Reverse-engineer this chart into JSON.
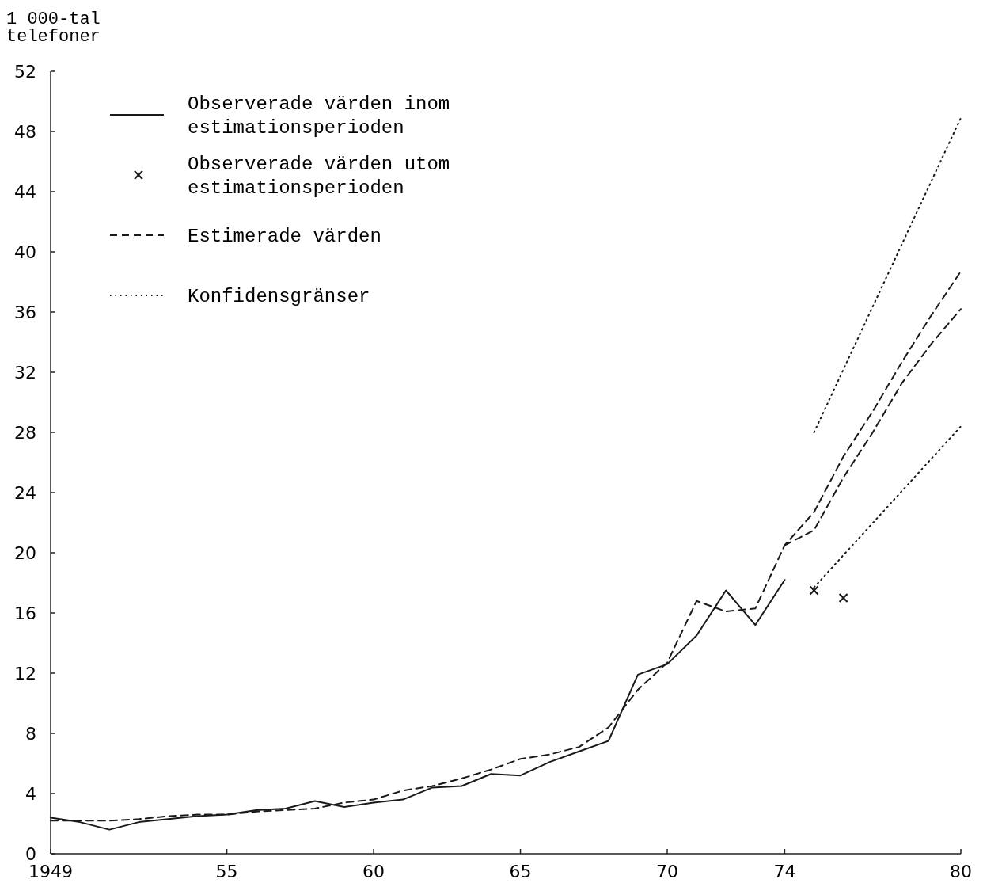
{
  "chart_data": {
    "type": "line",
    "ylabel": "1 000-tal telefoner",
    "xlim": [
      1949,
      1980
    ],
    "xticks": [
      1949,
      {
        "value": 1955,
        "label": "55"
      },
      {
        "value": 1960,
        "label": "60"
      },
      {
        "value": 1965,
        "label": "65"
      },
      {
        "value": 1970,
        "label": "70"
      },
      {
        "value": 1974,
        "label": "74"
      },
      {
        "value": 1980,
        "label": "80"
      }
    ],
    "ylim": [
      0,
      52
    ],
    "yticks": [
      0,
      4,
      8,
      12,
      16,
      20,
      24,
      28,
      32,
      36,
      40,
      44,
      48,
      52
    ],
    "grid": false,
    "legend": "top left",
    "series": [
      {
        "name": "Observerade värden inom estimationsperioden",
        "line_style": "solid",
        "color": "#1a1a1a",
        "x": [
          1949,
          1950,
          1951,
          1952,
          1953,
          1954,
          1955,
          1956,
          1957,
          1958,
          1959,
          1960,
          1961,
          1962,
          1963,
          1964,
          1965,
          1966,
          1967,
          1968,
          1969,
          1970,
          1971,
          1972,
          1973,
          1974
        ],
        "values": [
          2.4,
          2.1,
          1.6,
          2.1,
          2.3,
          2.5,
          2.6,
          2.9,
          3.0,
          3.5,
          3.1,
          3.4,
          3.6,
          4.4,
          4.5,
          5.3,
          5.2,
          6.1,
          6.8,
          7.5,
          11.9,
          12.6,
          14.5,
          17.5,
          15.2,
          18.2
        ]
      },
      {
        "name": "Observerade värden utom estimationsperioden",
        "type": "scatter",
        "marker": "cross",
        "color": "#1a1a1a",
        "x": [
          1975,
          1976
        ],
        "values": [
          17.5,
          17.0
        ]
      },
      {
        "name": "Estimerade värden",
        "line_style": "dashed",
        "color": "#1a1a1a",
        "x": [
          1949,
          1950,
          1951,
          1952,
          1953,
          1954,
          1955,
          1956,
          1957,
          1958,
          1959,
          1960,
          1961,
          1962,
          1963,
          1964,
          1965,
          1966,
          1967,
          1968,
          1969,
          1970,
          1971,
          1972,
          1973,
          1974,
          1975,
          1976,
          1977,
          1978,
          1979,
          1980
        ],
        "values": [
          2.2,
          2.2,
          2.2,
          2.3,
          2.5,
          2.6,
          2.6,
          2.8,
          2.9,
          3.0,
          3.4,
          3.6,
          4.2,
          4.5,
          5.0,
          5.6,
          6.3,
          6.6,
          7.1,
          8.4,
          10.9,
          12.7,
          16.8,
          16.1,
          16.3,
          20.5,
          22.7,
          26.4,
          29.4,
          32.7,
          35.8,
          38.7
        ]
      },
      {
        "line_style": "dashed",
        "color": "#1a1a1a",
        "x": [
          1974,
          1975,
          1976,
          1977,
          1978,
          1979,
          1980
        ],
        "values": [
          20.5,
          21.5,
          25.0,
          28.0,
          31.3,
          33.9,
          36.2
        ]
      },
      {
        "name": "Konfidensgränser",
        "line_style": "dotted",
        "color": "#1a1a1a",
        "x": [
          1975,
          1980
        ],
        "values": [
          28.0,
          48.9
        ]
      },
      {
        "line_style": "dotted",
        "color": "#1a1a1a",
        "x": [
          1975,
          1980
        ],
        "values": [
          17.7,
          28.4
        ]
      }
    ]
  }
}
